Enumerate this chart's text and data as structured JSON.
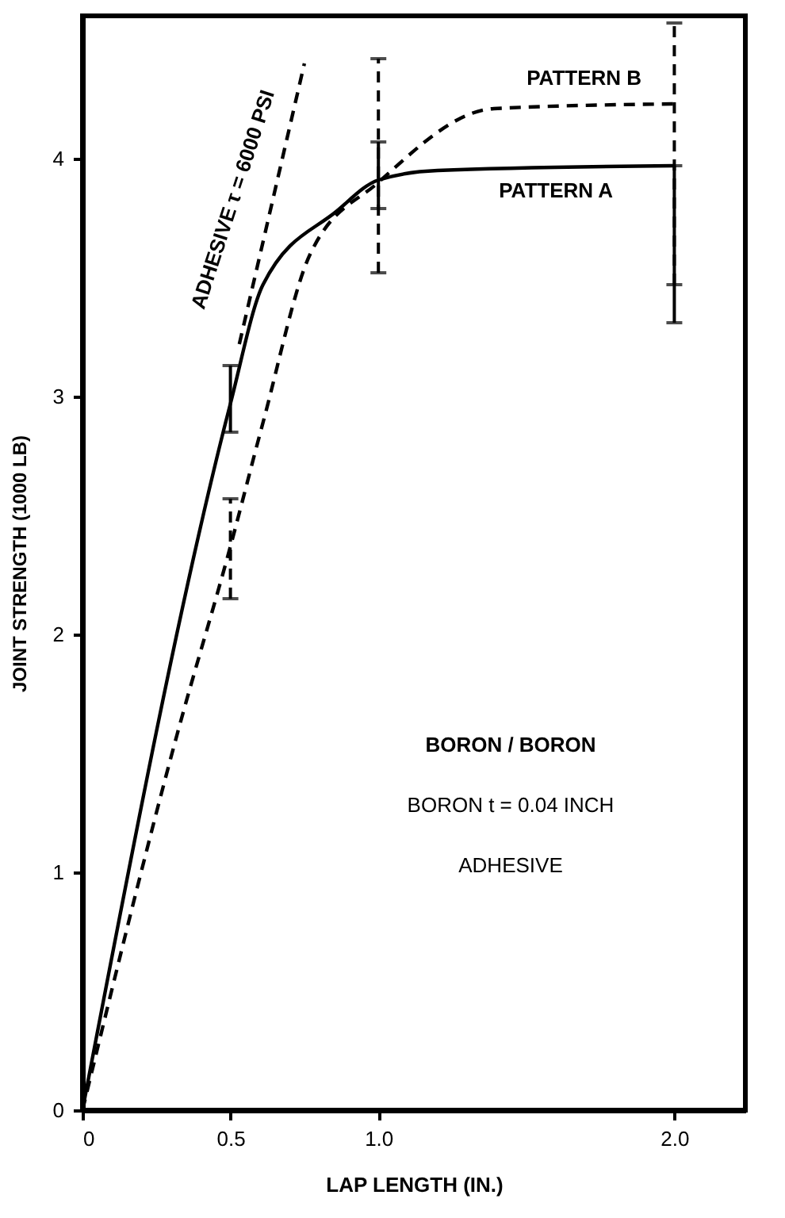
{
  "chart_data": {
    "type": "line",
    "xlabel": "LAP LENGTH (IN.)",
    "ylabel": "JOINT STRENGTH (1000 LB)",
    "xlim": [
      0,
      2.24
    ],
    "ylim": [
      0,
      4.6
    ],
    "xticks": [
      0,
      0.5,
      {
        "value": 1,
        "label": "1.0"
      },
      {
        "value": 2,
        "label": "2.0"
      }
    ],
    "yticks": [
      0,
      1,
      2,
      3,
      4
    ],
    "grid": false,
    "marker": "none",
    "series": [
      {
        "name": "PATTERN A",
        "color": "#000000",
        "line_style": "solid",
        "x": [
          0,
          0.5,
          0.61,
          0.86,
          1.0,
          1.2,
          2.0
        ],
        "values": [
          0,
          2.97,
          3.47,
          3.78,
          3.91,
          3.95,
          3.97
        ],
        "errors": [
          null,
          [
            2.85,
            3.13
          ],
          null,
          null,
          [
            3.79,
            4.07
          ],
          null,
          [
            3.31,
            3.97
          ]
        ]
      },
      {
        "name": "PATTERN B",
        "color": "#000000",
        "line_style": "dashed",
        "x": [
          0,
          0.32,
          0.5,
          0.61,
          0.77,
          1.0,
          1.39,
          2.0
        ],
        "values": [
          0,
          1.58,
          2.37,
          2.89,
          3.6,
          3.9,
          4.21,
          4.23
        ],
        "errors": [
          null,
          null,
          [
            2.15,
            2.57
          ],
          null,
          null,
          [
            3.52,
            4.42
          ],
          null,
          [
            3.47,
            4.57
          ]
        ]
      },
      {
        "color": "#000000",
        "line_style": "dashed",
        "x": [
          0.53,
          0.75
        ],
        "values": [
          3.22,
          4.4
        ]
      }
    ],
    "annotations": [
      "ADHESIVE τ = 6000 PSI",
      "BORON / BORON",
      "BORON t = 0.04 INCH",
      "ADHESIVE"
    ]
  }
}
